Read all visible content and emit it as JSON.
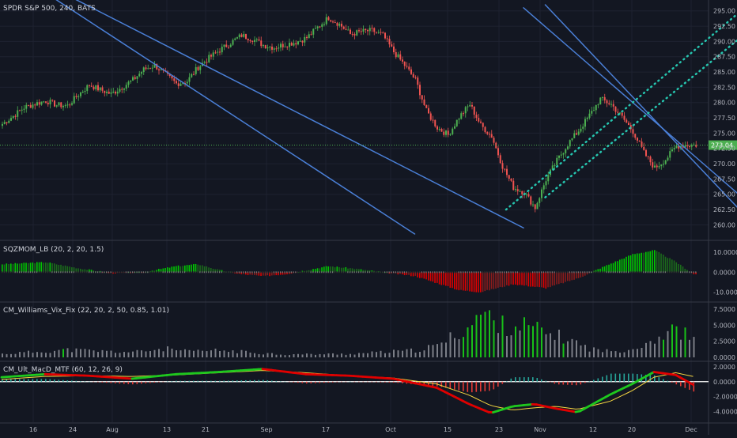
{
  "header": {
    "symbol_title": "SPDR S&P 500, 240, BATS"
  },
  "colors": {
    "background": "#131722",
    "grid": "#1e2230",
    "bull": "#26a69a",
    "bull_candle": "#4caf50",
    "bear": "#ef5350",
    "channel": "#4a7fd6",
    "dotted_channel": "#26c6b0",
    "price_badge": "#4caf50"
  },
  "chart_data": [
    {
      "panel": "price",
      "type": "candlestick",
      "title": "SPDR S&P 500, 240, BATS",
      "y_ticks": [
        "295.00",
        "292.50",
        "290.00",
        "287.50",
        "285.00",
        "282.50",
        "280.00",
        "277.50",
        "275.00",
        "272.50",
        "270.00",
        "267.50",
        "265.00",
        "262.50",
        "260.00"
      ],
      "ylim": [
        258.5,
        296
      ],
      "last_price": "273.04",
      "x_ticks": [
        "16",
        "24",
        "Aug",
        "13",
        "21",
        "Sep",
        "17",
        "Oct",
        "15",
        "23",
        "Nov",
        "12",
        "20",
        "Dec"
      ],
      "close_path": [
        [
          0,
          276.5
        ],
        [
          5,
          277.8
        ],
        [
          10,
          279.2
        ],
        [
          15,
          279.8
        ],
        [
          20,
          280.3
        ],
        [
          25,
          279.6
        ],
        [
          30,
          279.5
        ],
        [
          35,
          281.3
        ],
        [
          40,
          282.9
        ],
        [
          45,
          282.1
        ],
        [
          50,
          281.4
        ],
        [
          55,
          282.5
        ],
        [
          60,
          283.7
        ],
        [
          65,
          285.4
        ],
        [
          70,
          286.1
        ],
        [
          75,
          284.6
        ],
        [
          80,
          283.1
        ],
        [
          85,
          283.5
        ],
        [
          90,
          285.8
        ],
        [
          95,
          287.3
        ],
        [
          100,
          288.6
        ],
        [
          105,
          289.8
        ],
        [
          110,
          291.0
        ],
        [
          115,
          290.4
        ],
        [
          120,
          289.4
        ],
        [
          125,
          289.0
        ],
        [
          130,
          289.5
        ],
        [
          135,
          289.9
        ],
        [
          140,
          290.6
        ],
        [
          145,
          292.3
        ],
        [
          150,
          293.9
        ],
        [
          155,
          292.8
        ],
        [
          160,
          291.2
        ],
        [
          165,
          291.6
        ],
        [
          170,
          291.8
        ],
        [
          175,
          291.0
        ],
        [
          180,
          288.3
        ],
        [
          185,
          286.1
        ],
        [
          190,
          283.7
        ],
        [
          195,
          278.6
        ],
        [
          200,
          275.9
        ],
        [
          205,
          274.7
        ],
        [
          210,
          277.6
        ],
        [
          215,
          279.7
        ],
        [
          220,
          276.3
        ],
        [
          225,
          274.5
        ],
        [
          230,
          269.6
        ],
        [
          235,
          266.1
        ],
        [
          240,
          265.3
        ],
        [
          245,
          262.8
        ],
        [
          250,
          267.4
        ],
        [
          255,
          270.5
        ],
        [
          260,
          273.2
        ],
        [
          265,
          275.4
        ],
        [
          270,
          277.9
        ],
        [
          275,
          280.6
        ],
        [
          280,
          279.7
        ],
        [
          285,
          277.6
        ],
        [
          290,
          275.3
        ],
        [
          295,
          271.8
        ],
        [
          300,
          269.3
        ],
        [
          305,
          270.7
        ],
        [
          310,
          272.9
        ],
        [
          315,
          273.04
        ]
      ],
      "channels": [
        {
          "style": "solid",
          "p1": [
            3,
            302.5
          ],
          "p2": [
            240,
            259.5
          ]
        },
        {
          "style": "solid",
          "p1": [
            5,
            301.5
          ],
          "p2": [
            190,
            258.5
          ]
        },
        {
          "style": "solid",
          "p1": [
            240,
            295.5
          ],
          "p2": [
            360,
            258.5
          ]
        },
        {
          "style": "solid",
          "p1": [
            250,
            296.0
          ],
          "p2": [
            350,
            258.5
          ]
        },
        {
          "style": "dotted",
          "p1": [
            232,
            262.5
          ],
          "p2": [
            345,
            296.5
          ]
        },
        {
          "style": "dotted",
          "p1": [
            250,
            264.5
          ],
          "p2": [
            360,
            296.5
          ]
        }
      ]
    },
    {
      "panel": "squeeze-momentum",
      "type": "bar",
      "title": "SQZMOM_LB (20, 2, 20, 1.5)",
      "y_ticks": [
        "10.0000",
        "0.0000",
        "-10.0000"
      ],
      "ylim": [
        -13,
        14
      ],
      "keys": [
        [
          0,
          4
        ],
        [
          20,
          5
        ],
        [
          35,
          2
        ],
        [
          50,
          -0.5
        ],
        [
          65,
          0
        ],
        [
          80,
          3
        ],
        [
          90,
          4
        ],
        [
          100,
          1
        ],
        [
          110,
          -1
        ],
        [
          120,
          -2
        ],
        [
          130,
          -1
        ],
        [
          140,
          1
        ],
        [
          150,
          3
        ],
        [
          160,
          2
        ],
        [
          175,
          0
        ],
        [
          190,
          -2
        ],
        [
          210,
          -9
        ],
        [
          220,
          -10
        ],
        [
          235,
          -6
        ],
        [
          250,
          -8
        ],
        [
          265,
          -3
        ],
        [
          275,
          2
        ],
        [
          290,
          9
        ],
        [
          300,
          11
        ],
        [
          310,
          5
        ],
        [
          318,
          -1
        ]
      ]
    },
    {
      "panel": "williams-vix-fix",
      "type": "bar",
      "title": "CM_Williams_Vix_Fix (22, 20, 2, 50, 0.85, 1.01)",
      "y_ticks": [
        "7.5000",
        "5.0000",
        "2.5000",
        "0.0000"
      ],
      "ylim": [
        0,
        8
      ],
      "keys": [
        [
          0,
          0.6
        ],
        [
          30,
          1.3
        ],
        [
          50,
          1.0
        ],
        [
          60,
          0.9
        ],
        [
          75,
          1.5
        ],
        [
          85,
          1.0
        ],
        [
          100,
          1.2
        ],
        [
          130,
          0.5
        ],
        [
          160,
          0.6
        ],
        [
          190,
          1.2
        ],
        [
          200,
          2.0
        ],
        [
          215,
          5.4
        ],
        [
          220,
          7.6
        ],
        [
          230,
          5.5
        ],
        [
          240,
          5.5
        ],
        [
          250,
          4.2
        ],
        [
          260,
          3.2
        ],
        [
          270,
          1.5
        ],
        [
          280,
          1.0
        ],
        [
          290,
          1.5
        ],
        [
          300,
          3.2
        ],
        [
          310,
          4.8
        ],
        [
          318,
          3.2
        ]
      ]
    },
    {
      "panel": "ultimate-macd",
      "type": "line",
      "title": "CM_Ult_MacD_MTF (60, 12, 26, 9)",
      "y_ticks": [
        "2.0000",
        "0.0000",
        "-2.0000",
        "-4.0000"
      ],
      "ylim": [
        -5,
        2.2
      ],
      "macd": [
        [
          0,
          0.6
        ],
        [
          20,
          1.0
        ],
        [
          40,
          0.8
        ],
        [
          60,
          0.4
        ],
        [
          80,
          1.0
        ],
        [
          100,
          1.3
        ],
        [
          120,
          1.7
        ],
        [
          140,
          1.0
        ],
        [
          160,
          0.8
        ],
        [
          180,
          0.4
        ],
        [
          200,
          -0.8
        ],
        [
          215,
          -3.0
        ],
        [
          225,
          -4.2
        ],
        [
          235,
          -3.3
        ],
        [
          245,
          -3.0
        ],
        [
          255,
          -3.6
        ],
        [
          265,
          -4.1
        ],
        [
          280,
          -1.7
        ],
        [
          290,
          -0.3
        ],
        [
          300,
          1.3
        ],
        [
          310,
          0.9
        ],
        [
          318,
          -0.4
        ]
      ],
      "signal": [
        [
          0,
          0.3
        ],
        [
          20,
          0.7
        ],
        [
          40,
          0.8
        ],
        [
          60,
          0.7
        ],
        [
          80,
          0.9
        ],
        [
          100,
          1.2
        ],
        [
          120,
          1.5
        ],
        [
          140,
          1.2
        ],
        [
          160,
          0.8
        ],
        [
          180,
          0.5
        ],
        [
          200,
          -0.3
        ],
        [
          215,
          -1.8
        ],
        [
          225,
          -3.2
        ],
        [
          235,
          -3.8
        ],
        [
          245,
          -3.5
        ],
        [
          255,
          -3.3
        ],
        [
          265,
          -3.7
        ],
        [
          280,
          -2.6
        ],
        [
          290,
          -1.2
        ],
        [
          300,
          0.6
        ],
        [
          310,
          1.2
        ],
        [
          318,
          0.7
        ]
      ]
    }
  ]
}
